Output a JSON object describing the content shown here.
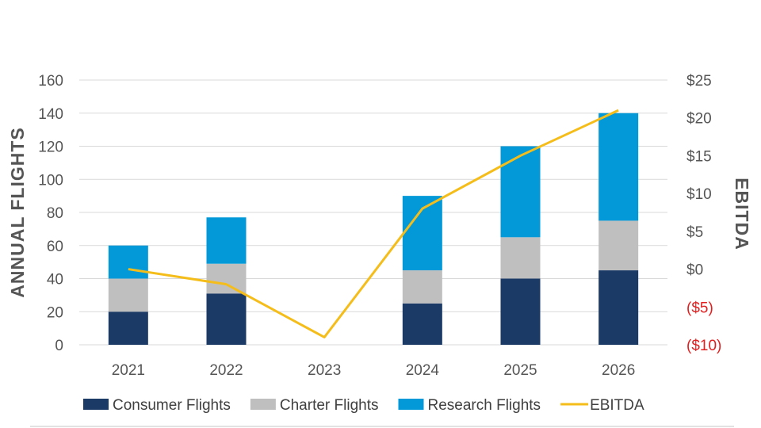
{
  "chart_data": {
    "type": "bar",
    "stacked": true,
    "categories": [
      "2021",
      "2022",
      "2023",
      "2024",
      "2025",
      "2026"
    ],
    "series": [
      {
        "name": "Consumer Flights",
        "axis": "left",
        "color": "#1b3a66",
        "values": [
          20,
          31,
          0,
          25,
          40,
          45
        ]
      },
      {
        "name": "Charter Flights",
        "axis": "left",
        "color": "#bfbfbf",
        "values": [
          20,
          18,
          0,
          20,
          25,
          30
        ]
      },
      {
        "name": "Research Flights",
        "axis": "left",
        "color": "#0399d8",
        "values": [
          20,
          28,
          0,
          45,
          55,
          65
        ]
      },
      {
        "name": "EBITDA",
        "axis": "right",
        "type": "line",
        "color": "#f5bd1a",
        "values": [
          0,
          -2,
          -9,
          8,
          15,
          21
        ]
      }
    ],
    "xlabel": "",
    "ylabel": "ANNUAL FLIGHTS",
    "ylabel_right": "EBITDA",
    "ylim": [
      0,
      160
    ],
    "ylim_right": [
      -10,
      25
    ],
    "yticks": [
      0,
      20,
      40,
      60,
      80,
      100,
      120,
      140,
      160
    ],
    "yticks_right": [
      {
        "value": -10,
        "label": "($10)",
        "color": "#e02020"
      },
      {
        "value": -5,
        "label": "($5)",
        "color": "#e02020"
      },
      {
        "value": 0,
        "label": "$0",
        "color": "#555555"
      },
      {
        "value": 5,
        "label": "$5",
        "color": "#555555"
      },
      {
        "value": 10,
        "label": "$10",
        "color": "#555555"
      },
      {
        "value": 15,
        "label": "$15",
        "color": "#555555"
      },
      {
        "value": 20,
        "label": "$20",
        "color": "#555555"
      },
      {
        "value": 25,
        "label": "$25",
        "color": "#555555"
      }
    ],
    "grid": true,
    "legend": "bottom"
  }
}
